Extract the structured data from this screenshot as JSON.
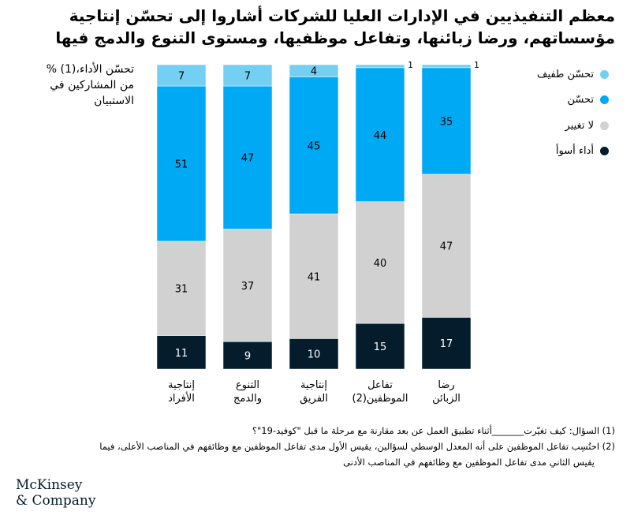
{
  "title": "معظم التنفيذيين في الإدارات العليا للشركات أشاروا إلى تحسّن إنتاجية مؤسساتهم، ورضا زبائنها، وتفاعل موظفيها، ومستوى التنوع والدمج فيها",
  "chart_data": {
    "type": "bar",
    "stacked": true,
    "ylabel_lines": [
      "تحسّن الأداء،(1) %",
      "من المشاركين في",
      "الاستبيان"
    ],
    "ylim": [
      0,
      100
    ],
    "categories": [
      [
        "إنتاجية",
        "الأفراد"
      ],
      [
        "التنوع",
        "والدمج"
      ],
      [
        "إنتاجية",
        "الفريق"
      ],
      [
        "تفاعل",
        "الموظفين(2)"
      ],
      [
        "رضا",
        "الزبائن"
      ]
    ],
    "series": [
      {
        "name": "أداء أسوأ",
        "color": "#051c2c",
        "values": [
          11,
          9,
          10,
          15,
          17
        ]
      },
      {
        "name": "لا تغيير",
        "color": "#d1d1d1",
        "values": [
          31,
          37,
          41,
          40,
          47
        ]
      },
      {
        "name": "تحسّن",
        "color": "#00a9f4",
        "values": [
          51,
          47,
          45,
          44,
          35
        ]
      },
      {
        "name": "تحسّن طفيف",
        "color": "#73d0f2",
        "values": [
          7,
          7,
          4,
          1,
          1
        ]
      }
    ],
    "legend_order": [
      3,
      2,
      1,
      0
    ],
    "legend": "right",
    "grid": false
  },
  "footnotes": [
    "(1)  السؤال: كيف تغيّرت_______أثناء تطبيق العمل عن بعد مقارنة مع مرحلة ما قبل \"كوفيد-19\"؟",
    "(2)  احتُسِب تفاعل الموظفين على أنه المعدل الوسطي لسؤالين، يقيس الأول مدى تفاعل الموظفين مع وظائفهم في المناصب الأعلى، فيما",
    "يقيس الثاني مدى تفاعل الموظفين مع وظائفهم في المناصب الأدنى"
  ],
  "logo": [
    "McKinsey",
    "& Company"
  ]
}
